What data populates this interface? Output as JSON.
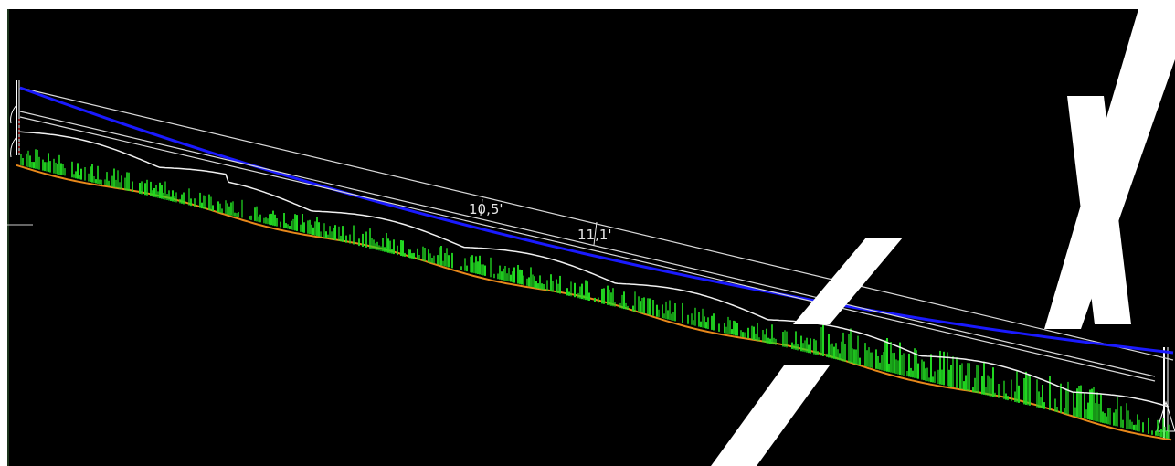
{
  "viewer": {
    "background_color": "#000000",
    "frame_color": "#ffffff",
    "watermark_color": "#ffffff"
  },
  "profile": {
    "clearance_label_1": "10,5'",
    "clearance_label_2": "11,1'",
    "colors": {
      "conductor": "#1a1aff",
      "conductor_highlight": "#8d8dff",
      "reference_line": "#d9d9d9",
      "vegetation": "#22dd22",
      "ground": "#e8881a",
      "canopy_top": "#f0f0f0"
    }
  }
}
